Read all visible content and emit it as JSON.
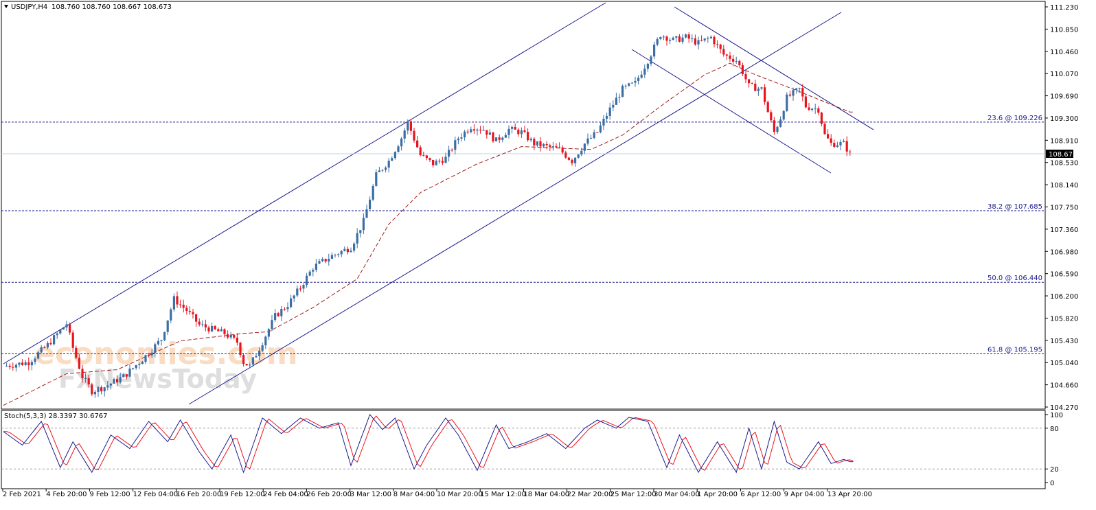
{
  "header": {
    "symbol": "USDJPY,H4",
    "ohlc": "108.760 108.760 108.667 108.673"
  },
  "watermark": {
    "line1": "economies.com",
    "line2": "FxNewsToday"
  },
  "oscillator": {
    "label": "Stoch(5,3,3) 28.3397 30.6767",
    "levels": [
      "100",
      "80",
      "20",
      "0"
    ]
  },
  "colors": {
    "bull": "#3a6ea5",
    "bear": "#e8141e",
    "channel": "#1a1a8c",
    "ma": "#a02020",
    "stoch_main": "#1a1a8c",
    "stoch_signal": "#e8141e"
  },
  "chart_data": {
    "type": "candlestick",
    "ylim": [
      104.27,
      111.23
    ],
    "y_ticks": [
      "111.230",
      "110.850",
      "110.460",
      "110.070",
      "109.690",
      "109.300",
      "108.910",
      "108.530",
      "108.140",
      "107.750",
      "107.360",
      "106.980",
      "106.590",
      "106.200",
      "105.820",
      "105.430",
      "105.040",
      "104.660",
      "104.270"
    ],
    "x_ticks": [
      "2 Feb 2021",
      "4 Feb 20:00",
      "9 Feb 12:00",
      "12 Feb 04:00",
      "16 Feb 20:00",
      "19 Feb 12:00",
      "24 Feb 04:00",
      "26 Feb 20:00",
      "3 Mar 12:00",
      "8 Mar 04:00",
      "10 Mar 20:00",
      "15 Mar 12:00",
      "18 Mar 04:00",
      "22 Mar 20:00",
      "25 Mar 12:00",
      "30 Mar 04:00",
      "1 Apr 20:00",
      "6 Apr 12:00",
      "9 Apr 04:00",
      "13 Apr 20:00"
    ],
    "current_price": "108.673",
    "fib_levels": [
      {
        "label": "23.6 @ 109.226",
        "value": 109.226
      },
      {
        "label": "38.2 @ 107.685",
        "value": 107.685
      },
      {
        "label": "50.0 @ 106.440",
        "value": 106.44
      },
      {
        "label": "61.8 @ 105.195",
        "value": 105.195
      }
    ],
    "close_path": [
      [
        0,
        104.98
      ],
      [
        8,
        105.05
      ],
      [
        14,
        105.35
      ],
      [
        18,
        105.6
      ],
      [
        20,
        105.72
      ],
      [
        22,
        105.3
      ],
      [
        25,
        104.8
      ],
      [
        28,
        104.55
      ],
      [
        32,
        104.62
      ],
      [
        38,
        104.8
      ],
      [
        44,
        105.1
      ],
      [
        50,
        105.45
      ],
      [
        54,
        106.15
      ],
      [
        58,
        105.95
      ],
      [
        62,
        105.7
      ],
      [
        66,
        105.62
      ],
      [
        70,
        105.55
      ],
      [
        74,
        105.4
      ],
      [
        76,
        105.05
      ],
      [
        78,
        104.98
      ],
      [
        82,
        105.4
      ],
      [
        86,
        105.85
      ],
      [
        90,
        106.05
      ],
      [
        94,
        106.35
      ],
      [
        98,
        106.7
      ],
      [
        104,
        106.9
      ],
      [
        110,
        107.05
      ],
      [
        114,
        107.5
      ],
      [
        118,
        108.3
      ],
      [
        122,
        108.55
      ],
      [
        126,
        108.95
      ],
      [
        128,
        109.22
      ],
      [
        132,
        108.65
      ],
      [
        136,
        108.5
      ],
      [
        140,
        108.6
      ],
      [
        144,
        108.95
      ],
      [
        148,
        109.15
      ],
      [
        152,
        109.1
      ],
      [
        156,
        108.9
      ],
      [
        160,
        109.1
      ],
      [
        164,
        109.05
      ],
      [
        168,
        108.85
      ],
      [
        172,
        108.8
      ],
      [
        176,
        108.75
      ],
      [
        180,
        108.55
      ],
      [
        184,
        108.85
      ],
      [
        188,
        109.05
      ],
      [
        192,
        109.45
      ],
      [
        196,
        109.8
      ],
      [
        200,
        109.9
      ],
      [
        204,
        110.3
      ],
      [
        208,
        110.75
      ],
      [
        212,
        110.65
      ],
      [
        216,
        110.7
      ],
      [
        220,
        110.6
      ],
      [
        224,
        110.7
      ],
      [
        228,
        110.4
      ],
      [
        232,
        110.3
      ],
      [
        234,
        110.1
      ],
      [
        236,
        109.85
      ],
      [
        240,
        109.8
      ],
      [
        242,
        109.4
      ],
      [
        244,
        109.05
      ],
      [
        246,
        109.3
      ],
      [
        248,
        109.65
      ],
      [
        252,
        109.8
      ],
      [
        254,
        109.5
      ],
      [
        258,
        109.45
      ],
      [
        260,
        109.0
      ],
      [
        262,
        108.85
      ],
      [
        266,
        108.85
      ],
      [
        268,
        108.673
      ]
    ],
    "ma_path": [
      [
        0,
        104.3
      ],
      [
        20,
        104.85
      ],
      [
        36,
        104.92
      ],
      [
        56,
        105.42
      ],
      [
        76,
        105.55
      ],
      [
        84,
        105.58
      ],
      [
        98,
        106.0
      ],
      [
        112,
        106.5
      ],
      [
        122,
        107.45
      ],
      [
        132,
        108.0
      ],
      [
        150,
        108.5
      ],
      [
        164,
        108.8
      ],
      [
        186,
        108.75
      ],
      [
        196,
        109.0
      ],
      [
        208,
        109.5
      ],
      [
        222,
        110.05
      ],
      [
        230,
        110.25
      ],
      [
        238,
        110.05
      ],
      [
        250,
        109.8
      ],
      [
        268,
        109.4
      ]
    ],
    "stoch_path": [
      [
        0,
        75
      ],
      [
        6,
        55
      ],
      [
        12,
        90
      ],
      [
        18,
        22
      ],
      [
        22,
        60
      ],
      [
        28,
        15
      ],
      [
        34,
        70
      ],
      [
        40,
        50
      ],
      [
        46,
        90
      ],
      [
        52,
        60
      ],
      [
        56,
        92
      ],
      [
        62,
        45
      ],
      [
        66,
        20
      ],
      [
        72,
        70
      ],
      [
        76,
        15
      ],
      [
        82,
        95
      ],
      [
        88,
        72
      ],
      [
        94,
        95
      ],
      [
        100,
        80
      ],
      [
        106,
        88
      ],
      [
        110,
        25
      ],
      [
        116,
        100
      ],
      [
        120,
        78
      ],
      [
        124,
        95
      ],
      [
        130,
        20
      ],
      [
        134,
        55
      ],
      [
        140,
        95
      ],
      [
        144,
        70
      ],
      [
        150,
        18
      ],
      [
        156,
        85
      ],
      [
        160,
        50
      ],
      [
        166,
        60
      ],
      [
        172,
        72
      ],
      [
        178,
        50
      ],
      [
        184,
        80
      ],
      [
        188,
        92
      ],
      [
        194,
        80
      ],
      [
        198,
        96
      ],
      [
        204,
        90
      ],
      [
        210,
        22
      ],
      [
        214,
        70
      ],
      [
        220,
        15
      ],
      [
        226,
        60
      ],
      [
        232,
        15
      ],
      [
        236,
        80
      ],
      [
        240,
        20
      ],
      [
        244,
        90
      ],
      [
        248,
        30
      ],
      [
        252,
        20
      ],
      [
        258,
        60
      ],
      [
        262,
        28
      ],
      [
        266,
        34
      ],
      [
        268,
        30.68
      ]
    ]
  }
}
